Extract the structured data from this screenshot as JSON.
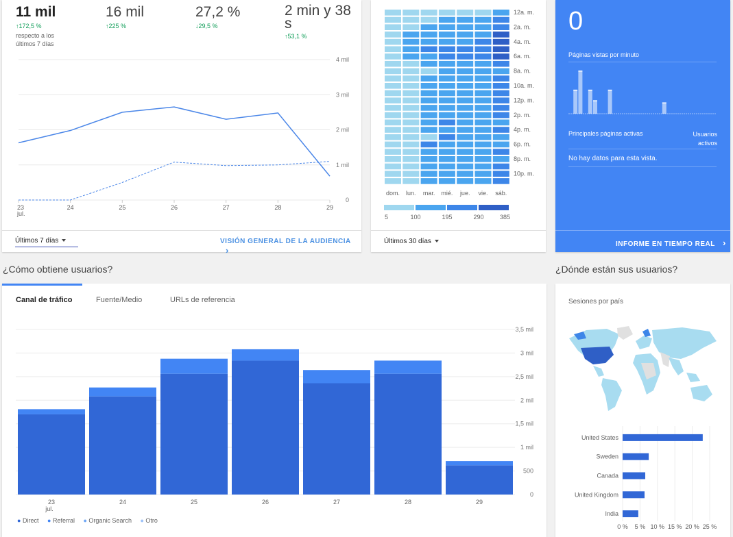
{
  "audience": {
    "metrics": [
      {
        "value": "11 mil",
        "change": "172,5 %",
        "sub": "respecto a los últimos 7 días"
      },
      {
        "value": "16 mil",
        "change": "225 %"
      },
      {
        "value": "27,2 %",
        "change": "29,5 %",
        "direction": "down"
      },
      {
        "value": "2 min y 38 s",
        "change": "53,1 %"
      }
    ],
    "date_range": "Últimos 7 días",
    "link": "VISIÓN GENERAL DE LA AUDIENCIA",
    "chart_data": {
      "type": "line",
      "x": [
        "23 jul.",
        "24",
        "25",
        "26",
        "27",
        "28",
        "29"
      ],
      "y_ticks": [
        "4 mil",
        "3 mil",
        "2 mil",
        "1 mil",
        "0"
      ],
      "ylim": [
        0,
        4000
      ],
      "series": [
        {
          "style": "solid",
          "values": [
            1630,
            1980,
            2500,
            2650,
            2300,
            2480,
            680
          ]
        },
        {
          "style": "dashed",
          "values": [
            0,
            0,
            500,
            1080,
            980,
            1000,
            1100
          ]
        }
      ]
    }
  },
  "heatmap": {
    "days": [
      "dom.",
      "lun.",
      "mar.",
      "mié.",
      "jue.",
      "vie.",
      "sáb."
    ],
    "hour_labels": [
      "12a. m.",
      "2a. m.",
      "4a. m.",
      "6a. m.",
      "8a. m.",
      "10a. m.",
      "12p. m.",
      "2p. m.",
      "4p. m.",
      "6p. m.",
      "8p. m.",
      "10p. m."
    ],
    "legend": [
      "5",
      "100",
      "195",
      "290",
      "385"
    ],
    "colors": [
      "#9fd7ef",
      "#4aa5ef",
      "#3d86e8",
      "#2f5fc6"
    ],
    "date_range": "Últimos 30 días"
  },
  "realtime": {
    "value": "0",
    "pageviews_label": "Páginas vistas por minuto",
    "bars": [
      0,
      0.55,
      1,
      0,
      0.55,
      0.3,
      0,
      0,
      0.55,
      0,
      0,
      0,
      0,
      0,
      0,
      0,
      0,
      0,
      0,
      0.25,
      0,
      0,
      0,
      0,
      0,
      0,
      0,
      0,
      0,
      0
    ],
    "top_pages_label": "Principales páginas activas",
    "active_users_label": "Usuarios activos",
    "empty_text": "No hay datos para esta vista.",
    "link": "INFORME EN TIEMPO REAL",
    "color": "#4285f4"
  },
  "acquisition": {
    "heading": "¿Cómo obtiene usuarios?",
    "tabs": [
      "Canal de tráfico",
      "Fuente/Medio",
      "URLs de referencia"
    ],
    "legend": [
      "Direct",
      "Referral",
      "Organic Search",
      "Otro"
    ],
    "chart_data": {
      "type": "bar",
      "categories": [
        "23 jul.",
        "24",
        "25",
        "26",
        "27",
        "28",
        "29"
      ],
      "y_ticks": [
        "3,5 mil",
        "3 mil",
        "2,5 mil",
        "2 mil",
        "1,5 mil",
        "1 mil",
        "500",
        "0"
      ],
      "ylim": [
        0,
        3500
      ],
      "series": [
        {
          "name": "Direct",
          "values": [
            1700,
            2080,
            2560,
            2840,
            2360,
            2560,
            620
          ]
        },
        {
          "name": "Referral",
          "values": [
            110,
            190,
            320,
            240,
            280,
            280,
            90
          ]
        }
      ],
      "colors": [
        "#3167d6",
        "#4285f4"
      ]
    }
  },
  "geo": {
    "heading": "¿Dónde están sus usuarios?",
    "title": "Sesiones por país",
    "chart_data": {
      "type": "bar",
      "categories": [
        "United States",
        "Sweden",
        "Canada",
        "United Kingdom",
        "India"
      ],
      "values": [
        23,
        7.5,
        6.5,
        6.3,
        4.5
      ],
      "x_ticks": [
        "0 %",
        "5 %",
        "10 %",
        "15 %",
        "20 %",
        "25 %"
      ],
      "xlim": [
        0,
        25
      ]
    }
  }
}
